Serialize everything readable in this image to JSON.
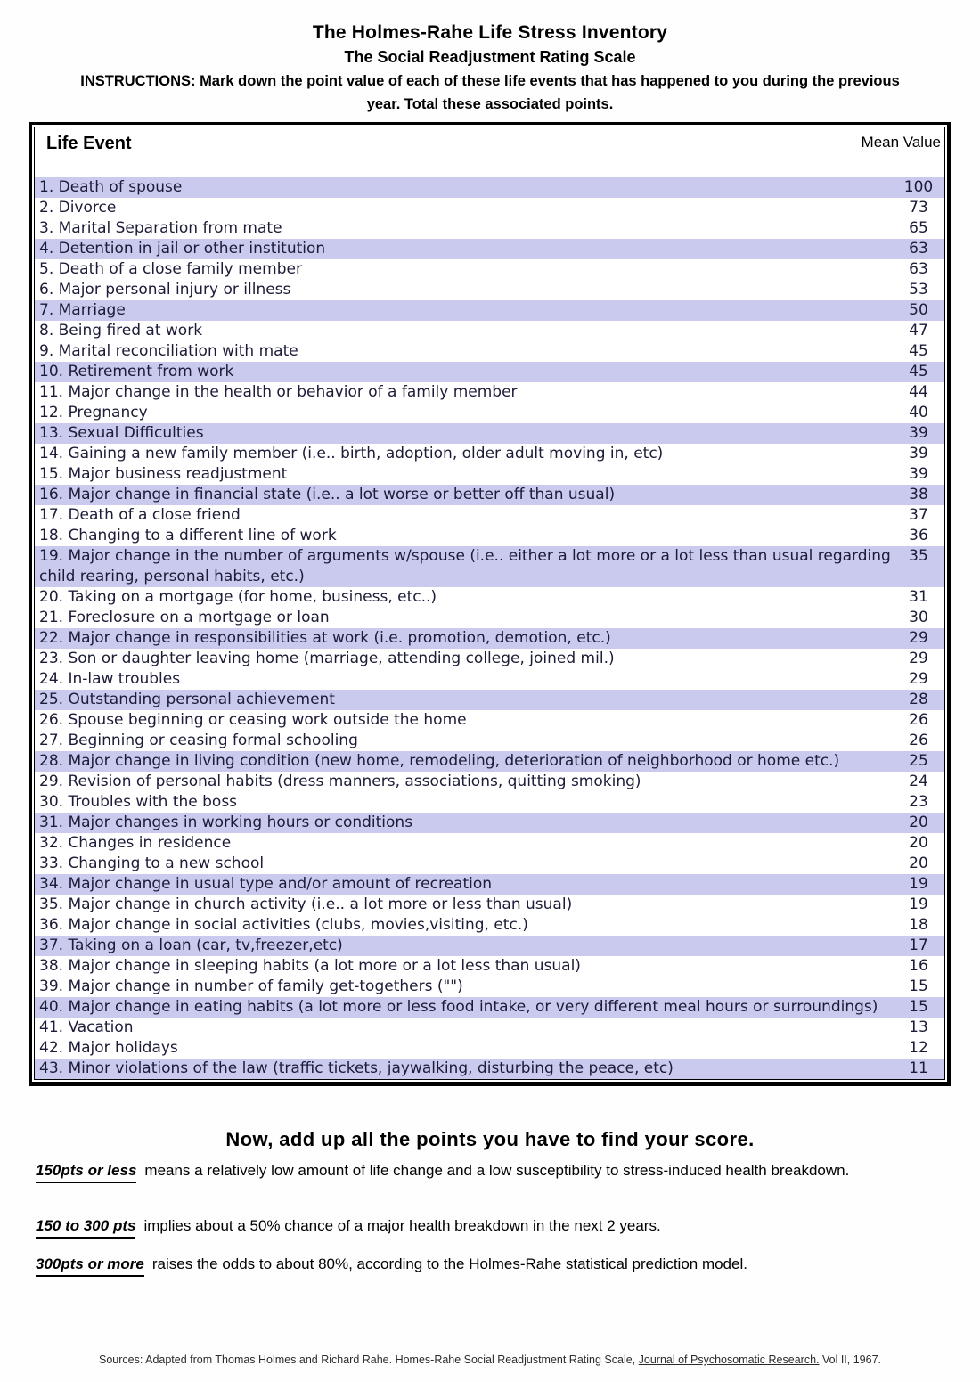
{
  "header": {
    "title": "The Holmes-Rahe Life Stress Inventory",
    "subtitle": "The Social Readjustment Rating Scale",
    "instructions": "INSTRUCTIONS:  Mark down the point value of each of these life events that has happened to you during the previous year.  Total these associated points."
  },
  "table": {
    "col_event": "Life Event",
    "col_value": "Mean Value",
    "rows": [
      {
        "event": "1. Death of spouse",
        "value": "100"
      },
      {
        "event": "2. Divorce",
        "value": "73"
      },
      {
        "event": "3. Marital Separation from mate",
        "value": "65"
      },
      {
        "event": "4. Detention in jail or other institution",
        "value": "63"
      },
      {
        "event": "5. Death of a close family member",
        "value": "63"
      },
      {
        "event": "6. Major personal injury or illness",
        "value": "53"
      },
      {
        "event": "7. Marriage",
        "value": "50"
      },
      {
        "event": "8. Being fired at work",
        "value": "47"
      },
      {
        "event": "9. Marital reconciliation with mate",
        "value": "45"
      },
      {
        "event": "10. Retirement from work",
        "value": "45"
      },
      {
        "event": "11. Major change in the health or behavior of a family member",
        "value": "44"
      },
      {
        "event": "12. Pregnancy",
        "value": "40"
      },
      {
        "event": "13. Sexual Difficulties",
        "value": "39"
      },
      {
        "event": "14. Gaining a new family member  (i.e.. birth, adoption, older adult moving in, etc)",
        "value": "39"
      },
      {
        "event": "15. Major business readjustment",
        "value": "39"
      },
      {
        "event": "16. Major change in financial state (i.e.. a lot worse or better off than usual)",
        "value": "38"
      },
      {
        "event": "17. Death of a close friend",
        "value": "37"
      },
      {
        "event": "18. Changing to a different line of work",
        "value": "36"
      },
      {
        "event": "19. Major change in the number of arguments w/spouse (i.e.. either a lot more or a lot less than usual regarding child rearing, personal habits, etc.)",
        "value": "35"
      },
      {
        "event": "20. Taking on a mortgage (for home, business, etc..)",
        "value": "31"
      },
      {
        "event": "21. Foreclosure on a mortgage or loan",
        "value": "30"
      },
      {
        "event": "22. Major change in responsibilities at work (i.e. promotion, demotion, etc.)",
        "value": "29"
      },
      {
        "event": "23. Son or daughter leaving home (marriage, attending college, joined mil.)",
        "value": "29"
      },
      {
        "event": "24. In-law troubles",
        "value": "29"
      },
      {
        "event": "25. Outstanding personal achievement",
        "value": "28"
      },
      {
        "event": "26. Spouse beginning or ceasing work outside the home",
        "value": "26"
      },
      {
        "event": "27. Beginning or ceasing formal schooling",
        "value": "26"
      },
      {
        "event": "28. Major change in living condition (new home, remodeling, deterioration of neighborhood or home etc.)",
        "value": "25"
      },
      {
        "event": "29. Revision of personal habits (dress manners, associations, quitting smoking)",
        "value": "24"
      },
      {
        "event": "30. Troubles with the boss",
        "value": "23"
      },
      {
        "event": "31. Major changes in working hours or conditions",
        "value": "20"
      },
      {
        "event": "32. Changes in residence",
        "value": "20"
      },
      {
        "event": "33. Changing to a new school",
        "value": "20"
      },
      {
        "event": "34. Major change in usual type and/or amount of recreation",
        "value": "19"
      },
      {
        "event": "35. Major change in church activity (i.e.. a lot more or less than usual)",
        "value": "19"
      },
      {
        "event": "36. Major change in social activities (clubs, movies,visiting, etc.)",
        "value": "18"
      },
      {
        "event": "37. Taking on a loan (car, tv,freezer,etc)",
        "value": "17"
      },
      {
        "event": "38. Major change in sleeping habits (a lot more or a lot less than usual)",
        "value": "16"
      },
      {
        "event": "39. Major change in number of family get-togethers (\"\")",
        "value": "15"
      },
      {
        "event": "40. Major change in eating habits (a lot more or less food intake, or very different meal hours or surroundings)",
        "value": "15"
      },
      {
        "event": "41. Vacation",
        "value": "13"
      },
      {
        "event": "42. Major holidays",
        "value": "12"
      },
      {
        "event": "43. Minor violations of the law (traffic tickets, jaywalking, disturbing the peace, etc)",
        "value": "11"
      }
    ]
  },
  "score": {
    "heading": "Now, add up all the points you have to find your score.",
    "levels": [
      {
        "range": "150pts or less",
        "text": "means a relatively low amount of life change and a low susceptibility to stress-induced  health breakdown."
      },
      {
        "range": "150 to 300 pts",
        "text": "implies about a 50% chance of a major health breakdown in the next 2 years."
      },
      {
        "range": "300pts or more",
        "text": "raises the odds to about 80%, according to the Holmes-Rahe statistical prediction model."
      }
    ]
  },
  "footer": {
    "prefix": "Sources: Adapted from Thomas Holmes and Richard Rahe. Homes-Rahe Social Readjustment Rating Scale, ",
    "journal": "Journal of Psychosomatic Research.",
    "suffix": " Vol II, 1967."
  },
  "colors": {
    "row_shade": "#cacaef",
    "row_text": "#1c1c38",
    "border": "#000000"
  }
}
